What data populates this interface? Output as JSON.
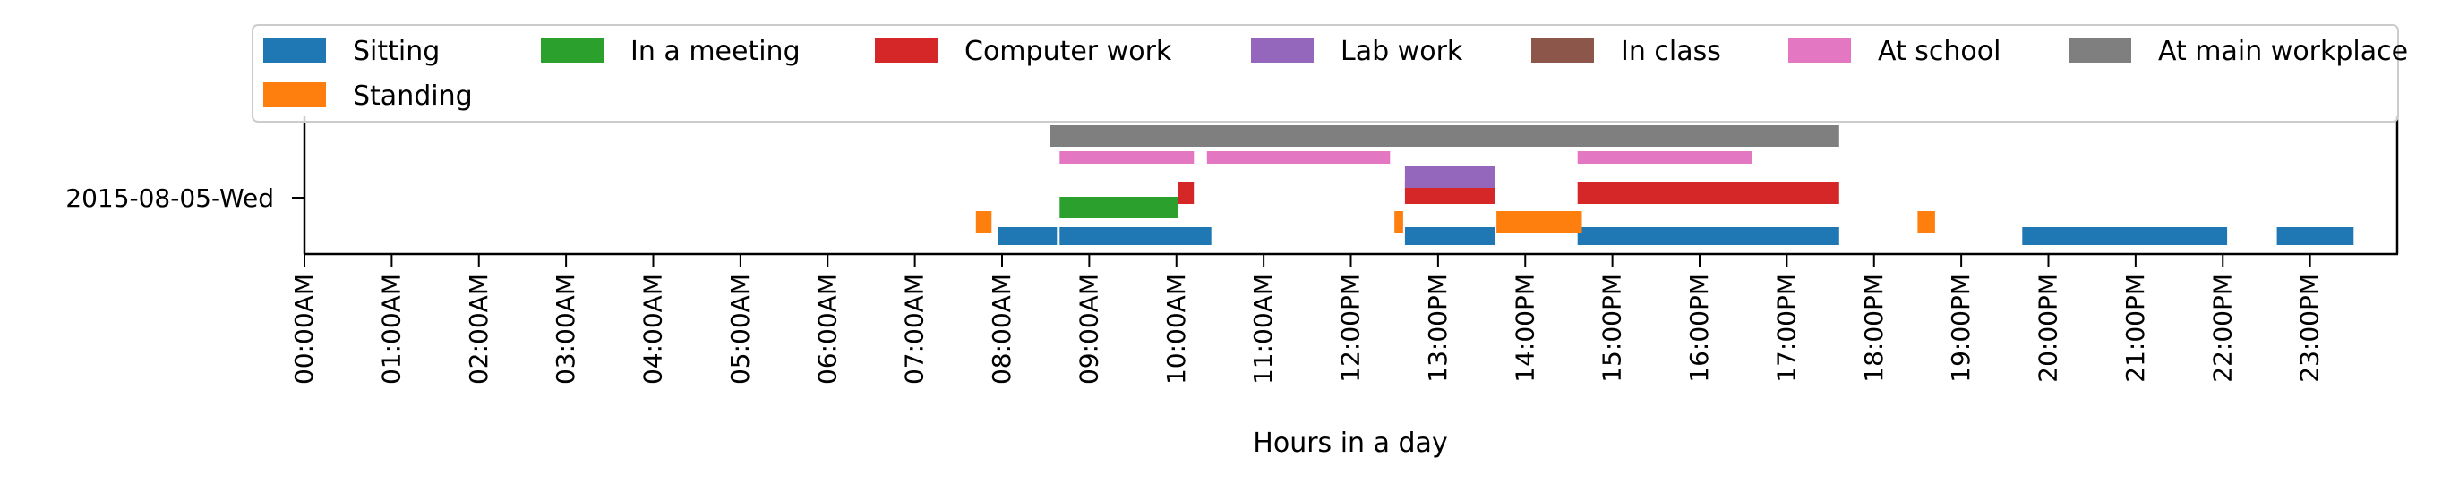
{
  "chart_data": {
    "type": "timeline",
    "title": "",
    "xlabel": "Hours in a day",
    "ylabel": "",
    "x_unit": "hours",
    "xlim": [
      0,
      24
    ],
    "row_label": "2015-08-05-Wed",
    "x_ticks": [
      {
        "value": 0,
        "label": "00:00AM"
      },
      {
        "value": 1,
        "label": "01:00AM"
      },
      {
        "value": 2,
        "label": "02:00AM"
      },
      {
        "value": 3,
        "label": "03:00AM"
      },
      {
        "value": 4,
        "label": "04:00AM"
      },
      {
        "value": 5,
        "label": "05:00AM"
      },
      {
        "value": 6,
        "label": "06:00AM"
      },
      {
        "value": 7,
        "label": "07:00AM"
      },
      {
        "value": 8,
        "label": "08:00AM"
      },
      {
        "value": 9,
        "label": "09:00AM"
      },
      {
        "value": 10,
        "label": "10:00AM"
      },
      {
        "value": 11,
        "label": "11:00AM"
      },
      {
        "value": 12,
        "label": "12:00PM"
      },
      {
        "value": 13,
        "label": "13:00PM"
      },
      {
        "value": 14,
        "label": "14:00PM"
      },
      {
        "value": 15,
        "label": "15:00PM"
      },
      {
        "value": 16,
        "label": "16:00PM"
      },
      {
        "value": 17,
        "label": "17:00PM"
      },
      {
        "value": 18,
        "label": "18:00PM"
      },
      {
        "value": 19,
        "label": "19:00PM"
      },
      {
        "value": 20,
        "label": "20:00PM"
      },
      {
        "value": 21,
        "label": "21:00PM"
      },
      {
        "value": 22,
        "label": "22:00PM"
      },
      {
        "value": 23,
        "label": "23:00PM"
      }
    ],
    "legend_placement": "top",
    "grid": false,
    "series": [
      {
        "name": "Sitting",
        "color": "#1f77b4",
        "intervals": [
          [
            7.95,
            8.63
          ],
          [
            8.66,
            10.4
          ],
          [
            12.62,
            13.65
          ],
          [
            14.6,
            17.6
          ],
          [
            19.7,
            22.05
          ],
          [
            22.62,
            23.5
          ]
        ]
      },
      {
        "name": "Standing",
        "color": "#ff7f0e",
        "intervals": [
          [
            7.7,
            7.88
          ],
          [
            12.5,
            12.6
          ],
          [
            13.67,
            14.65
          ],
          [
            18.5,
            18.7
          ]
        ]
      },
      {
        "name": "In a meeting",
        "color": "#2ca02c",
        "intervals": [
          [
            8.66,
            10.02
          ]
        ]
      },
      {
        "name": "Computer work",
        "color": "#d62728",
        "intervals": [
          [
            10.02,
            10.2
          ],
          [
            12.62,
            13.65
          ],
          [
            14.6,
            17.6
          ]
        ]
      },
      {
        "name": "Lab work",
        "color": "#9467bd",
        "intervals": [
          [
            12.62,
            13.65
          ]
        ]
      },
      {
        "name": "In class",
        "color": "#8c564b",
        "intervals": []
      },
      {
        "name": "At school",
        "color": "#e377c2",
        "intervals": [
          [
            8.66,
            10.2
          ],
          [
            10.35,
            12.45
          ],
          [
            14.6,
            16.6
          ]
        ]
      },
      {
        "name": "At main workplace",
        "color": "#7f7f7f",
        "intervals": [
          [
            8.55,
            17.6
          ]
        ]
      }
    ]
  }
}
